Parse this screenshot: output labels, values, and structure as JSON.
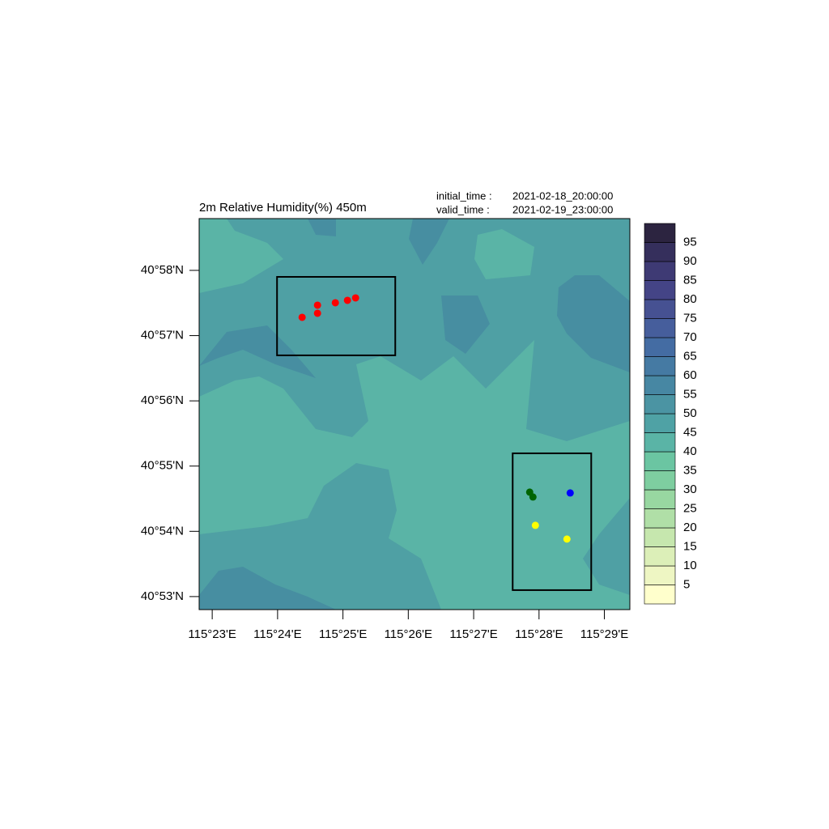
{
  "chart_data": {
    "type": "contour",
    "title": "2m Relative Humidity(%) 450m",
    "info": [
      {
        "label": "initial_time :",
        "value": "2021-02-18_20:00:00"
      },
      {
        "label": "valid_time  :",
        "value": "2021-02-19_23:00:00"
      }
    ],
    "xlim": [
      115.38,
      115.48983
    ],
    "ylim": [
      40.88,
      40.9799
    ],
    "xticks": [
      {
        "value": 115.38333,
        "label": "115°23'E"
      },
      {
        "value": 115.4,
        "label": "115°24'E"
      },
      {
        "value": 115.41667,
        "label": "115°25'E"
      },
      {
        "value": 115.43333,
        "label": "115°26'E"
      },
      {
        "value": 115.45,
        "label": "115°27'E"
      },
      {
        "value": 115.46667,
        "label": "115°28'E"
      },
      {
        "value": 115.48333,
        "label": "115°29'E"
      }
    ],
    "yticks": [
      {
        "value": 40.88333,
        "label": "40°53'N"
      },
      {
        "value": 40.9,
        "label": "40°54'N"
      },
      {
        "value": 40.91667,
        "label": "40°55'N"
      },
      {
        "value": 40.93333,
        "label": "40°56'N"
      },
      {
        "value": 40.95,
        "label": "40°57'N"
      },
      {
        "value": 40.96667,
        "label": "40°58'N"
      }
    ],
    "series": [
      {
        "color": "#ff0000",
        "x": [
          115.40626,
          115.41018,
          115.41018,
          115.41473,
          115.41782,
          115.41989
        ],
        "y": [
          40.95467,
          40.95571,
          40.95778,
          40.9584,
          40.95902,
          40.95964
        ]
      },
      {
        "color": "#006400",
        "x": [
          115.46429,
          115.46512
        ],
        "y": [
          40.91001,
          40.90877
        ]
      },
      {
        "color": "#0000ff",
        "x": [
          115.47462
        ],
        "y": [
          40.9098
        ]
      },
      {
        "color": "#ffff00",
        "x": [
          115.46574,
          115.47379
        ],
        "y": [
          40.90153,
          40.89802
        ]
      }
    ],
    "boxes": [
      {
        "xlim": [
          115.39986,
          115.43001
        ],
        "ylim": [
          40.94496,
          40.96501
        ]
      },
      {
        "xlim": [
          115.45995,
          115.47998
        ],
        "ylim": [
          40.88498,
          40.91993
        ]
      }
    ],
    "levels": [
      5,
      10,
      15,
      20,
      25,
      30,
      35,
      40,
      45,
      50,
      55,
      60,
      65,
      70,
      75,
      80,
      85,
      90,
      95
    ],
    "colors": [
      "#ffffcc",
      "#eef6c3",
      "#dcefb8",
      "#c6e7ae",
      "#b0dfa7",
      "#98d7a1",
      "#7ecea0",
      "#6bc5a2",
      "#5ab4a6",
      "#4fa2a5",
      "#4b94a3",
      "#4787a3",
      "#457aa3",
      "#446ca3",
      "#465e9c",
      "#465192",
      "#444486",
      "#3e3a74",
      "#352f5c",
      "#2c2440"
    ]
  }
}
